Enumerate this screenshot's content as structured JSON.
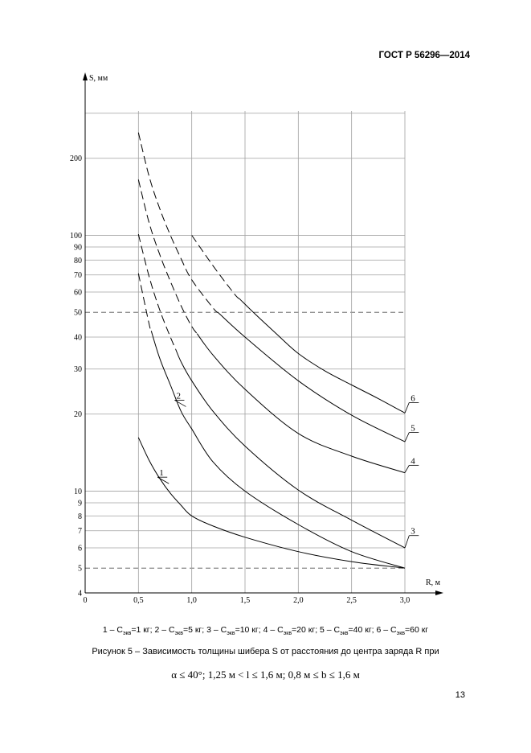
{
  "header": {
    "standard": "ГОСТ Р 56296—2014"
  },
  "chart_data": {
    "type": "line",
    "xlabel": "R, м",
    "ylabel": "S, мм",
    "xlim": [
      0,
      3.0
    ],
    "ylim": [
      4,
      290
    ],
    "y_scale": "log",
    "grid": true,
    "x_ticks": [
      0,
      0.5,
      1.0,
      1.5,
      2.0,
      2.5,
      3.0
    ],
    "x_tick_labels": [
      "0",
      "0,5",
      "1,0",
      "1,5",
      "2,0",
      "2,5",
      "3,0"
    ],
    "y_ticks": [
      4,
      5,
      6,
      7,
      8,
      9,
      10,
      20,
      30,
      40,
      50,
      60,
      70,
      80,
      90,
      100,
      200
    ],
    "y_tick_labels": [
      "4",
      "5",
      "6",
      "7",
      "8",
      "9",
      "10",
      "20",
      "30",
      "40",
      "50",
      "60",
      "70",
      "80",
      "90",
      "100",
      "200"
    ],
    "y_minor_grid": [
      300
    ],
    "reference_lines": [
      {
        "y": 50,
        "style": "dashed"
      },
      {
        "y": 5,
        "style": "dashed"
      }
    ],
    "series": [
      {
        "name": "1",
        "x": [
          0.5,
          0.6,
          0.7,
          0.8,
          0.9,
          1.0,
          1.2,
          1.5,
          2.0,
          2.5,
          3.0
        ],
        "y": [
          16.2,
          13.2,
          11.2,
          9.8,
          8.8,
          8.0,
          7.3,
          6.6,
          5.8,
          5.3,
          5.0
        ],
        "dashed_until": null,
        "label_at": [
          0.68,
          11.5
        ]
      },
      {
        "name": "2",
        "x": [
          0.5,
          0.6,
          0.7,
          0.8,
          0.9,
          1.0,
          1.2,
          1.5,
          2.0,
          2.5,
          3.0
        ],
        "y": [
          71,
          45,
          33,
          26,
          20.5,
          17.5,
          13.0,
          10.0,
          7.4,
          5.8,
          5.0
        ],
        "dashed_until": 0.62,
        "label_at": [
          0.84,
          23
        ]
      },
      {
        "name": "3",
        "x": [
          0.5,
          0.6,
          0.7,
          0.8,
          0.9,
          1.0,
          1.2,
          1.5,
          2.0,
          2.5,
          3.0
        ],
        "y": [
          101,
          69,
          51,
          40,
          32,
          27,
          20.5,
          15.0,
          10.1,
          7.7,
          6.0
        ],
        "dashed_until": 0.85,
        "label_at": [
          3.04,
          6.8
        ]
      },
      {
        "name": "4",
        "x": [
          0.5,
          0.6,
          0.7,
          0.8,
          0.9,
          1.0,
          1.2,
          1.5,
          2.0,
          2.5,
          3.0
        ],
        "y": [
          165,
          112,
          84,
          66,
          53,
          44,
          34,
          25,
          16.8,
          13.7,
          11.8
        ],
        "dashed_until": 1.05,
        "label_at": [
          3.04,
          12.8
        ]
      },
      {
        "name": "5",
        "x": [
          0.5,
          0.6,
          0.7,
          0.8,
          0.9,
          1.0,
          1.2,
          1.5,
          2.0,
          2.5,
          3.0
        ],
        "y": [
          252,
          170,
          127,
          100,
          81,
          67,
          52,
          40,
          27,
          19.8,
          15.6
        ],
        "dashed_until": 1.25,
        "label_at": [
          3.04,
          17.2
        ]
      },
      {
        "name": "6",
        "x": [
          1.0,
          1.2,
          1.4,
          1.6,
          1.8,
          2.0,
          2.25,
          2.5,
          2.75,
          3.0
        ],
        "y": [
          100,
          76,
          59,
          49,
          41,
          34.5,
          29.5,
          26,
          23,
          20.2
        ],
        "dashed_until": 1.45,
        "label_at": [
          3.04,
          22.5
        ]
      }
    ]
  },
  "legend": {
    "items": [
      {
        "num": "1",
        "mass": "1"
      },
      {
        "num": "2",
        "mass": "5"
      },
      {
        "num": "3",
        "mass": "10"
      },
      {
        "num": "4",
        "mass": "20"
      },
      {
        "num": "5",
        "mass": "40"
      },
      {
        "num": "6",
        "mass": "60"
      }
    ],
    "prefix": "С",
    "subscript": "экв",
    "unit": "кг"
  },
  "caption": "Рисунок 5 – Зависимость толщины шибера S от расстояния до центра заряда R при",
  "formula": "α ≤ 40°; 1,25 м < l ≤ 1,6 м; 0,8 м ≤ b ≤ 1,6 м",
  "page_number": "13"
}
